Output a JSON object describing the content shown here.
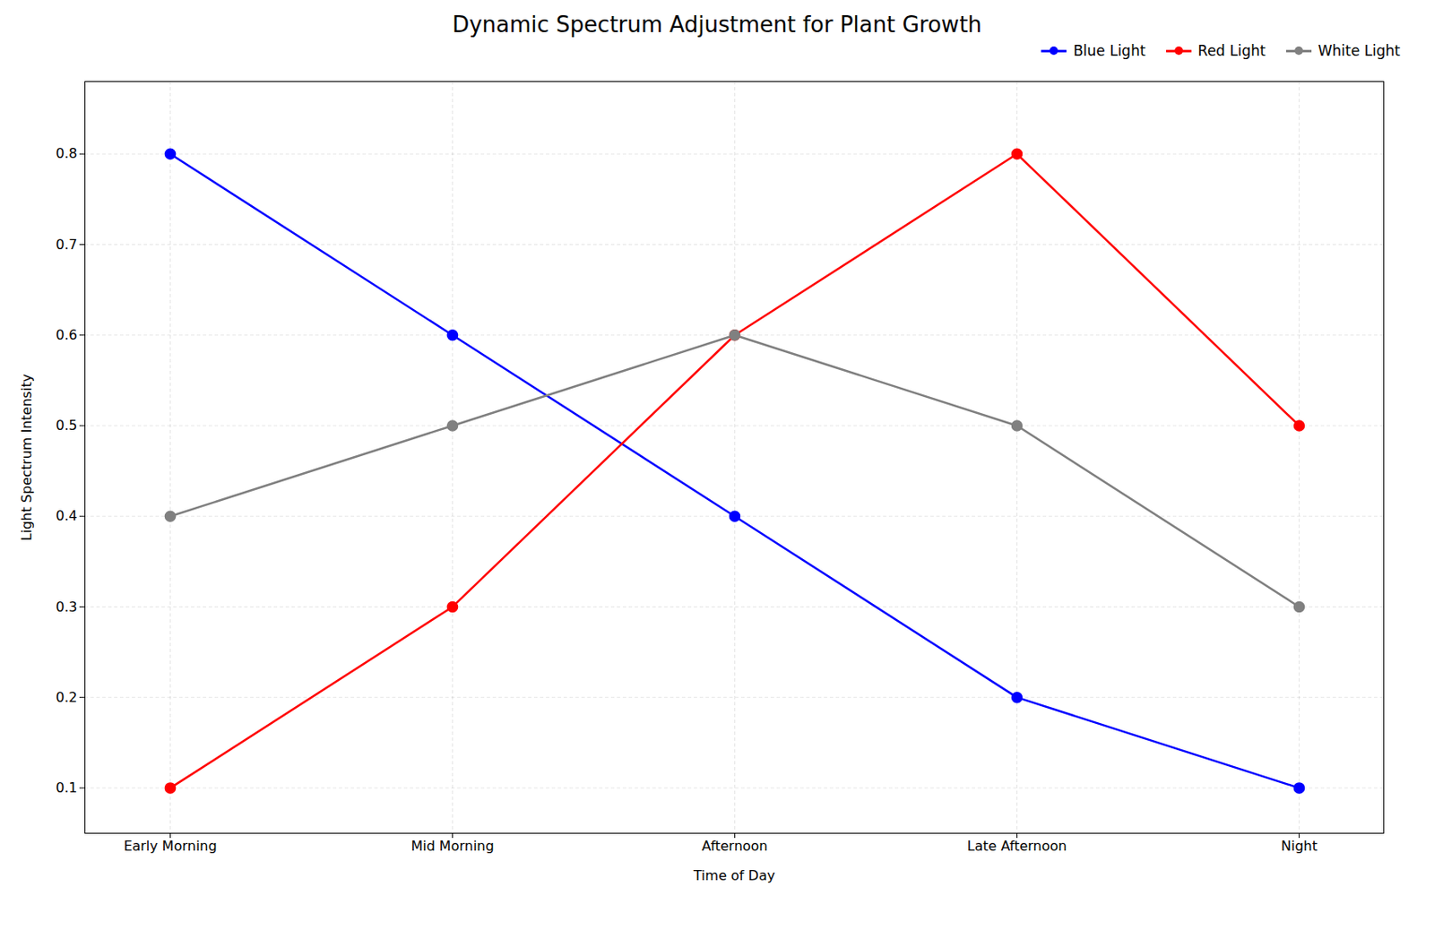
{
  "chart_data": {
    "type": "line",
    "title": "Dynamic Spectrum Adjustment for Plant Growth",
    "xlabel": "Time of Day",
    "ylabel": "Light Spectrum Intensity",
    "categories": [
      "Early Morning",
      "Mid Morning",
      "Afternoon",
      "Late Afternoon",
      "Night"
    ],
    "series": [
      {
        "name": "Blue Light",
        "color": "blue",
        "values": [
          0.8,
          0.6,
          0.4,
          0.2,
          0.1
        ]
      },
      {
        "name": "Red Light",
        "color": "red",
        "values": [
          0.1,
          0.3,
          0.6,
          0.8,
          0.5
        ]
      },
      {
        "name": "White Light",
        "color": "#808080",
        "values": [
          0.4,
          0.5,
          0.6,
          0.5,
          0.3
        ]
      }
    ],
    "ylim": [
      0.05,
      0.88
    ],
    "yticks": [
      0.1,
      0.2,
      0.3,
      0.4,
      0.5,
      0.6,
      0.7,
      0.8
    ],
    "grid": true,
    "legend": "upper right",
    "marker": "circle"
  }
}
